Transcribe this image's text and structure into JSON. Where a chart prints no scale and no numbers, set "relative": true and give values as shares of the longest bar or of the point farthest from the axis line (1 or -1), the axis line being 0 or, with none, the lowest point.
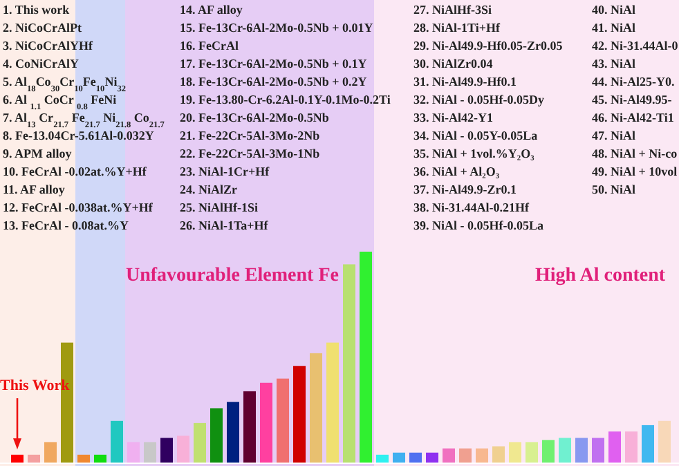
{
  "chart_data": {
    "type": "bar",
    "relative": true,
    "categories": [
      null,
      null,
      null,
      null,
      null,
      null,
      null,
      null,
      null,
      null,
      null,
      null,
      null,
      null,
      null,
      null,
      null,
      null,
      null,
      null,
      null,
      null,
      null,
      null,
      null,
      null,
      null,
      null,
      null,
      null,
      null,
      null,
      null,
      null,
      null,
      null,
      null,
      null,
      null,
      null
    ],
    "values": [
      0.04,
      0.04,
      0.1,
      0.57,
      0.04,
      0.04,
      0.2,
      0.1,
      0.1,
      0.12,
      0.13,
      0.19,
      0.26,
      0.29,
      0.34,
      0.38,
      0.4,
      0.46,
      0.52,
      0.57,
      0.94,
      1.0,
      0.04,
      0.05,
      0.05,
      0.05,
      0.07,
      0.07,
      0.07,
      0.08,
      0.1,
      0.1,
      0.11,
      0.12,
      0.12,
      0.12,
      0.15,
      0.15,
      0.18,
      0.2
    ],
    "colors": [
      "#ff0000",
      "#f4a0a0",
      "#f0a860",
      "#a09a10",
      "#f08830",
      "#10dd10",
      "#20c8c0",
      "#f0b0f0",
      "#c8c8c8",
      "#300060",
      "#f8b0d8",
      "#c0e070",
      "#109010",
      "#002080",
      "#600030",
      "#ff40a0",
      "#f07070",
      "#d00000",
      "#e8c070",
      "#f0e070",
      "#b8e070",
      "#30f030",
      "#30f0f0",
      "#40b0f0",
      "#5070f0",
      "#9030f0",
      "#f070c0",
      "#f0a090",
      "#f8b890",
      "#f0d090",
      "#f0e890",
      "#d8f090",
      "#70f070",
      "#70f0d0",
      "#8898f0",
      "#c070f0",
      "#e060f0",
      "#f8b0d8",
      "#40b8f0",
      "#f8d8b8"
    ],
    "annotations": [
      "1. This work",
      "2. NiCoCrAlPt",
      "3. NiCoCrAlYHf",
      "4. CoNiCrAlY",
      "5. Al$_{18}$Co$_{30}$Cr$_{10}$Fe$_{10}$Ni$_{32}$",
      "6. Al $_{1.1}$ CoCr $_{0.8}$ FeNi",
      "7. Al$_{13}$ Cr$_{21.7}$ Fe$_{21.7}$ Ni$_{21.8}$ Co$_{21.7}$",
      "8. Fe-13.04Cr-5.61Al-0.032Y",
      "9. APM alloy",
      "10. FeCrAl -0.02at.%Y+Hf",
      "11. AF alloy",
      "12. FeCrAl -0.038at.%Y+Hf",
      "13. FeCrAl - 0.08at.%Y",
      "14. AF alloy",
      "15. Fe-13Cr-6Al-2Mo-0.5Nb + 0.01Y",
      "16. FeCrAl",
      "17. Fe-13Cr-6Al-2Mo-0.5Nb + 0.1Y",
      "18. Fe-13Cr-6Al-2Mo-0.5Nb + 0.2Y",
      "19. Fe-13.80-Cr-6.2Al-0.1Y-0.1Mo-0.2Ti",
      "20. Fe-13Cr-6Al-2Mo-0.5Nb",
      "21. Fe-22Cr-5Al-3Mo-2Nb",
      "22. Fe-22Cr-5Al-3Mo-1Nb",
      "23. NiAl-1Cr+Hf",
      "24. NiAlZr",
      "25. NiAlHf-1Si",
      "26. NiAl-1Ta+Hf",
      "27. NiAlHf-3Si",
      "28. NiAl-1Ti+Hf",
      "29. Ni-Al49.9-Hf0.05-Zr0.05",
      "30. NiAlZr0.04",
      "31. Ni-Al49.9-Hf0.1",
      "32. NiAl - 0.05Hf-0.05Dy",
      "33. Ni-Al42-Y1",
      "34. NiAl - 0.05Y-0.05La",
      "35. NiAl + 1vol.%Y₂O₃",
      "36. NiAl + Al₂O₃",
      "37. Ni-Al49.9-Zr0.1",
      "38. Ni-31.44Al-0.21Hf",
      "39. NiAl - 0.05Hf-0.05La",
      "40. NiAl",
      "41. NiAl",
      "42. Ni-31.44Al-0",
      "43. NiAl",
      "44. Ni-Al25-Y0.",
      "45. Ni-Al49.95-",
      "46. Ni-Al42-Ti1",
      "47. NiAl",
      "48. NiAl + Ni-co",
      "49. NiAl + 10vol",
      "50. NiAl",
      "This Work",
      "Unfavourable Element Fe",
      "High Al content"
    ]
  }
}
